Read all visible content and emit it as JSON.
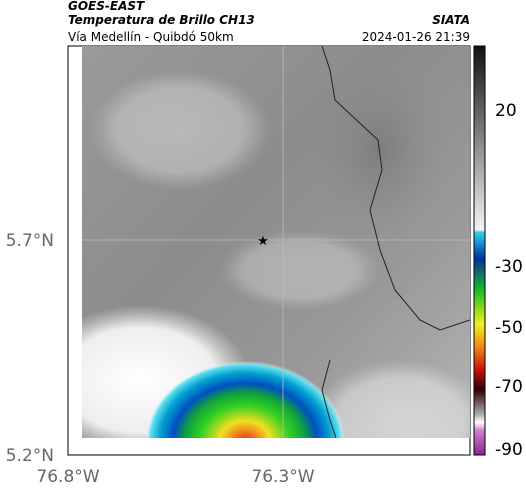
{
  "header": {
    "satellite": "GOES-EAST",
    "product": "Temperatura de Brillo CH13",
    "route": "Vía Medellín - Quibdó 50km",
    "agency": "SIATA",
    "timestamp": "2024-01-26 21:39"
  },
  "map": {
    "lat_labels": [
      "5.7°N",
      "5.2°N"
    ],
    "lon_labels": [
      "76.8°W",
      "76.3°W"
    ]
  },
  "colorbar": {
    "ticks": [
      "20",
      "-30",
      "-50",
      "-70",
      "-90"
    ]
  }
}
